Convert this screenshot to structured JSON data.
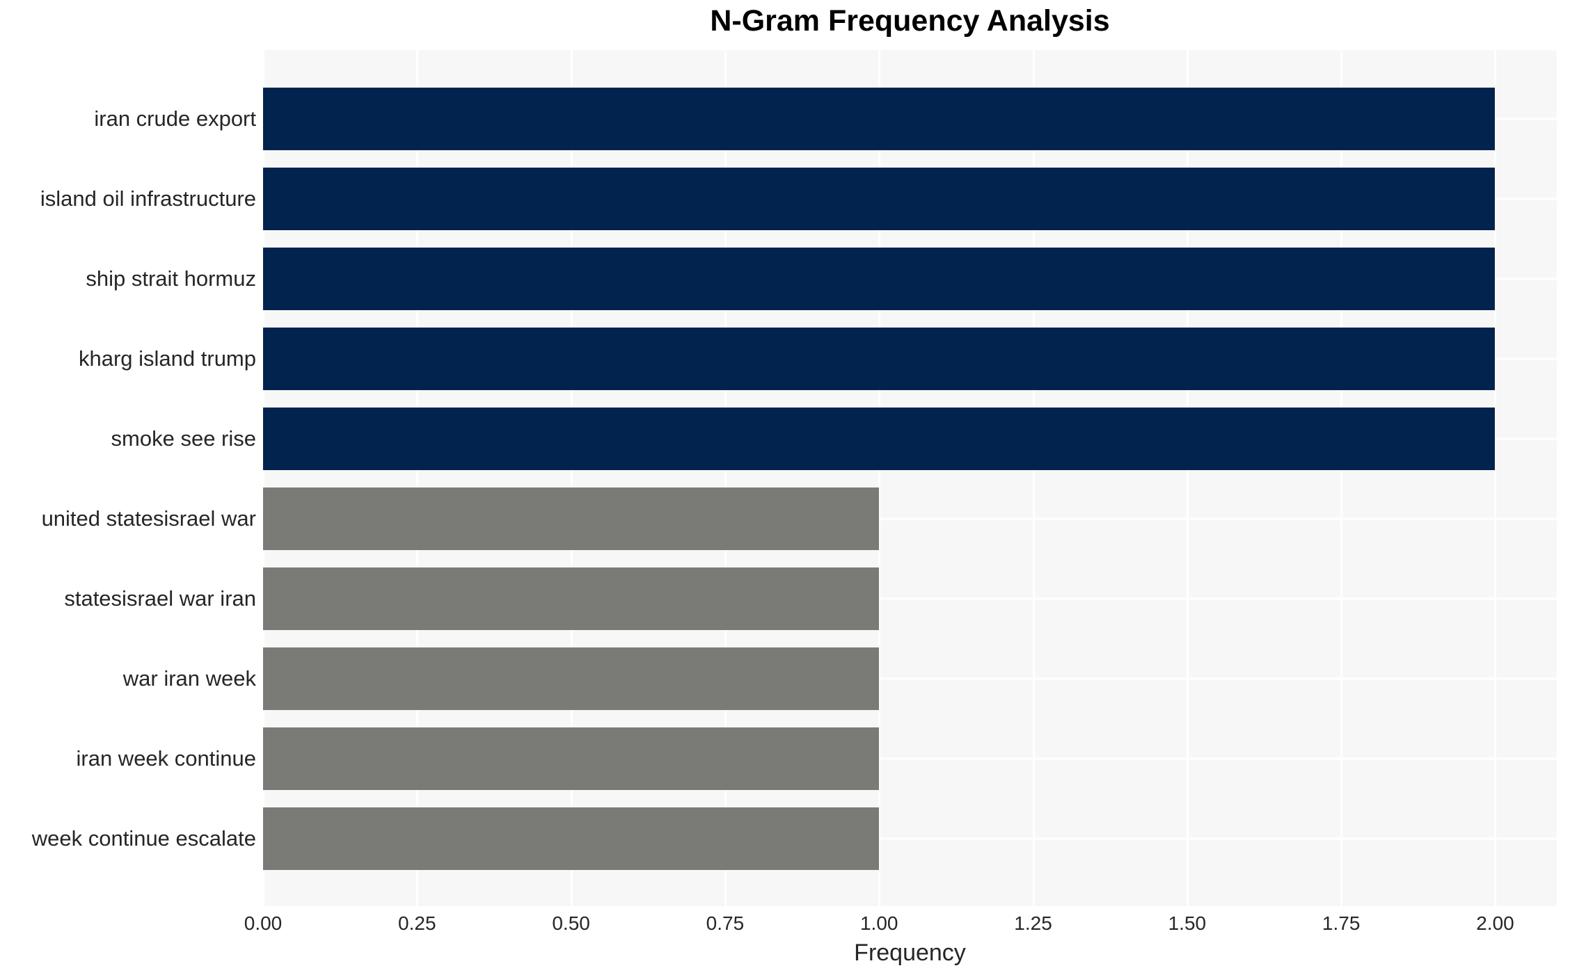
{
  "chart_data": {
    "type": "bar",
    "orientation": "horizontal",
    "title": "N-Gram Frequency Analysis",
    "xlabel": "Frequency",
    "ylabel": "",
    "categories": [
      "iran crude export",
      "island oil infrastructure",
      "ship strait hormuz",
      "kharg island trump",
      "smoke see rise",
      "united statesisrael war",
      "statesisrael war iran",
      "war iran week",
      "iran week continue",
      "week continue escalate"
    ],
    "values": [
      2.0,
      2.0,
      2.0,
      2.0,
      2.0,
      1.0,
      1.0,
      1.0,
      1.0,
      1.0
    ],
    "bar_colors": [
      "#02234d",
      "#02234d",
      "#02234d",
      "#02234d",
      "#02234d",
      "#7a7a77",
      "#7a7a77",
      "#7a7a77",
      "#7a7a77",
      "#7a7a77"
    ],
    "xlim": [
      0,
      2.1
    ],
    "xticks": {
      "values": [
        0,
        0.25,
        0.5,
        0.75,
        1.0,
        1.25,
        1.5,
        1.75,
        2.0
      ],
      "labels": [
        "0.00",
        "0.25",
        "0.50",
        "0.75",
        "1.00",
        "1.25",
        "1.50",
        "1.75",
        "2.00"
      ]
    },
    "grid": {
      "show": true,
      "color": "#ffffff"
    },
    "plot_background": "#f7f7f7",
    "page_background": "#ffffff",
    "text_color": "#262626",
    "title_color": "#000000"
  }
}
